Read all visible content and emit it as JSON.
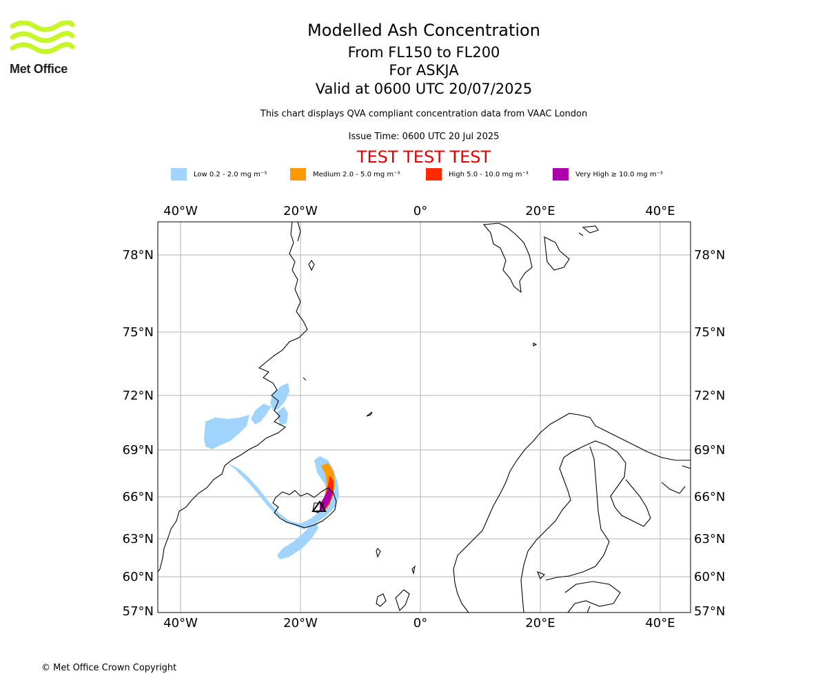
{
  "header": {
    "logo_text": "Met Office",
    "title": "Modelled Ash Concentration",
    "level_range": "From FL150 to FL200",
    "volcano": "For ASKJA",
    "valid_time": "Valid at 0600 UTC 20/07/2025",
    "description": "This chart displays QVA compliant concentration data from VAAC London",
    "issue_time": "Issue Time: 0600 UTC 20 Jul 2025",
    "test_banner": "TEST TEST TEST"
  },
  "legend": [
    {
      "label": "Low 0.2 - 2.0 mg m⁻³",
      "color": "#a0d4fc"
    },
    {
      "label": "Medium 2.0 - 5.0 mg m⁻³",
      "color": "#ff9a00"
    },
    {
      "label": "High 5.0 - 10.0 mg m⁻³",
      "color": "#ff2a00"
    },
    {
      "label": "Very High ≥ 10.0 mg m⁻³",
      "color": "#ab00ac"
    }
  ],
  "map": {
    "lon_ticks": [
      "40°W",
      "20°W",
      "0°",
      "20°E",
      "40°E"
    ],
    "lat_ticks": [
      "78°N",
      "75°N",
      "72°N",
      "69°N",
      "66°N",
      "63°N",
      "60°N",
      "57°N"
    ],
    "gridline_color": "#b0b0b0",
    "volcano_marker": "triangle"
  },
  "footer": {
    "copyright": "© Met Office Crown Copyright"
  }
}
